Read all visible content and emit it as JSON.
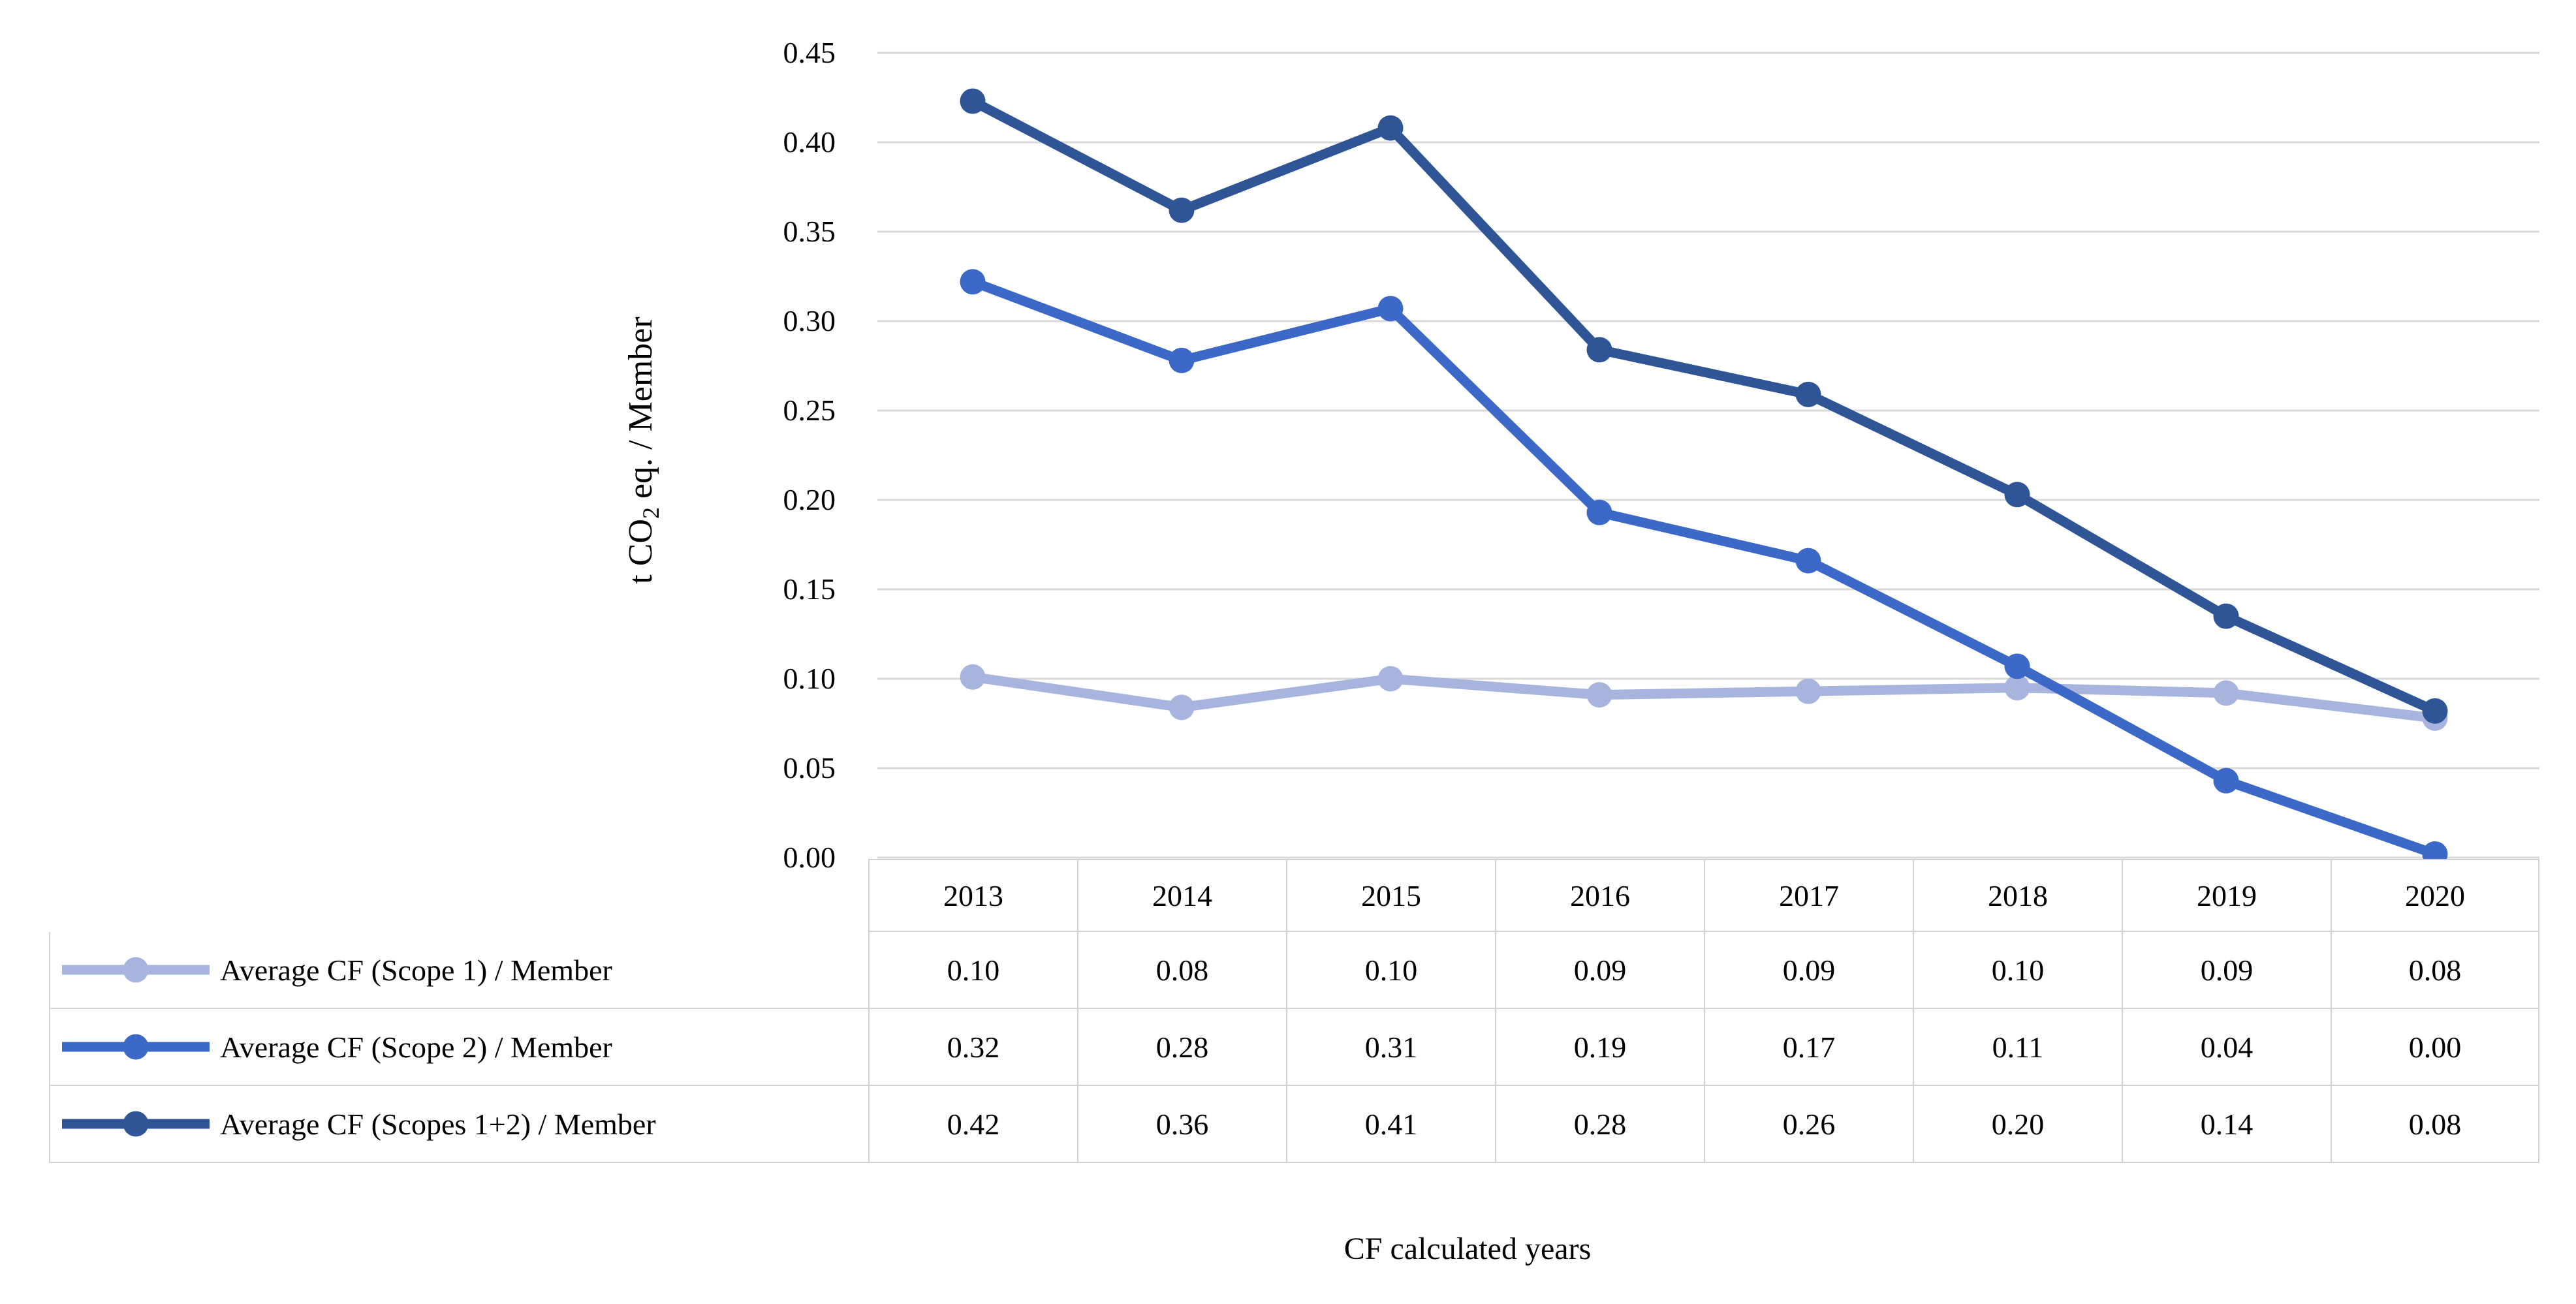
{
  "axes": {
    "y_title_prefix": "t CO",
    "y_title_sub": "2",
    "y_title_suffix": " eq. / Member",
    "x_title": "CF calculated years"
  },
  "chart_data": {
    "type": "line",
    "title": "",
    "xlabel": "CF calculated years",
    "ylabel": "t CO2 eq. / Member",
    "categories": [
      "2013",
      "2014",
      "2015",
      "2016",
      "2017",
      "2018",
      "2019",
      "2020"
    ],
    "series": [
      {
        "name": "Average CF (Scope 1) / Member",
        "color": "#A7B5DE",
        "values": [
          0.1,
          0.08,
          0.1,
          0.09,
          0.09,
          0.1,
          0.09,
          0.08
        ],
        "display_values": [
          "0.10",
          "0.08",
          "0.10",
          "0.09",
          "0.09",
          "0.10",
          "0.09",
          "0.08"
        ],
        "plot_values": [
          0.101,
          0.084,
          0.1,
          0.091,
          0.093,
          0.095,
          0.092,
          0.078
        ]
      },
      {
        "name": "Average CF (Scope 2) / Member",
        "color": "#3C69C7",
        "values": [
          0.32,
          0.28,
          0.31,
          0.19,
          0.17,
          0.11,
          0.04,
          0.0
        ],
        "display_values": [
          "0.32",
          "0.28",
          "0.31",
          "0.19",
          "0.17",
          "0.11",
          "0.04",
          "0.00"
        ],
        "plot_values": [
          0.322,
          0.278,
          0.307,
          0.193,
          0.166,
          0.107,
          0.043,
          0.002
        ]
      },
      {
        "name": "Average CF (Scopes 1+2) / Member",
        "color": "#2F5597",
        "values": [
          0.42,
          0.36,
          0.41,
          0.28,
          0.26,
          0.2,
          0.14,
          0.08
        ],
        "display_values": [
          "0.42",
          "0.36",
          "0.41",
          "0.28",
          "0.26",
          "0.20",
          "0.14",
          "0.08"
        ],
        "plot_values": [
          0.423,
          0.362,
          0.408,
          0.284,
          0.259,
          0.203,
          0.135,
          0.082
        ]
      }
    ],
    "ylim": [
      0,
      0.45
    ],
    "ytick_step": 0.05,
    "ytick_labels": [
      "0.45",
      "0.40",
      "0.35",
      "0.30",
      "0.25",
      "0.20",
      "0.15",
      "0.10",
      "0.05",
      "0.00"
    ],
    "grid": true,
    "legend_position": "table-left",
    "colors": {
      "gridline": "#D9D9D9",
      "table_border": "#D2D2D2",
      "text": "#000000"
    }
  }
}
